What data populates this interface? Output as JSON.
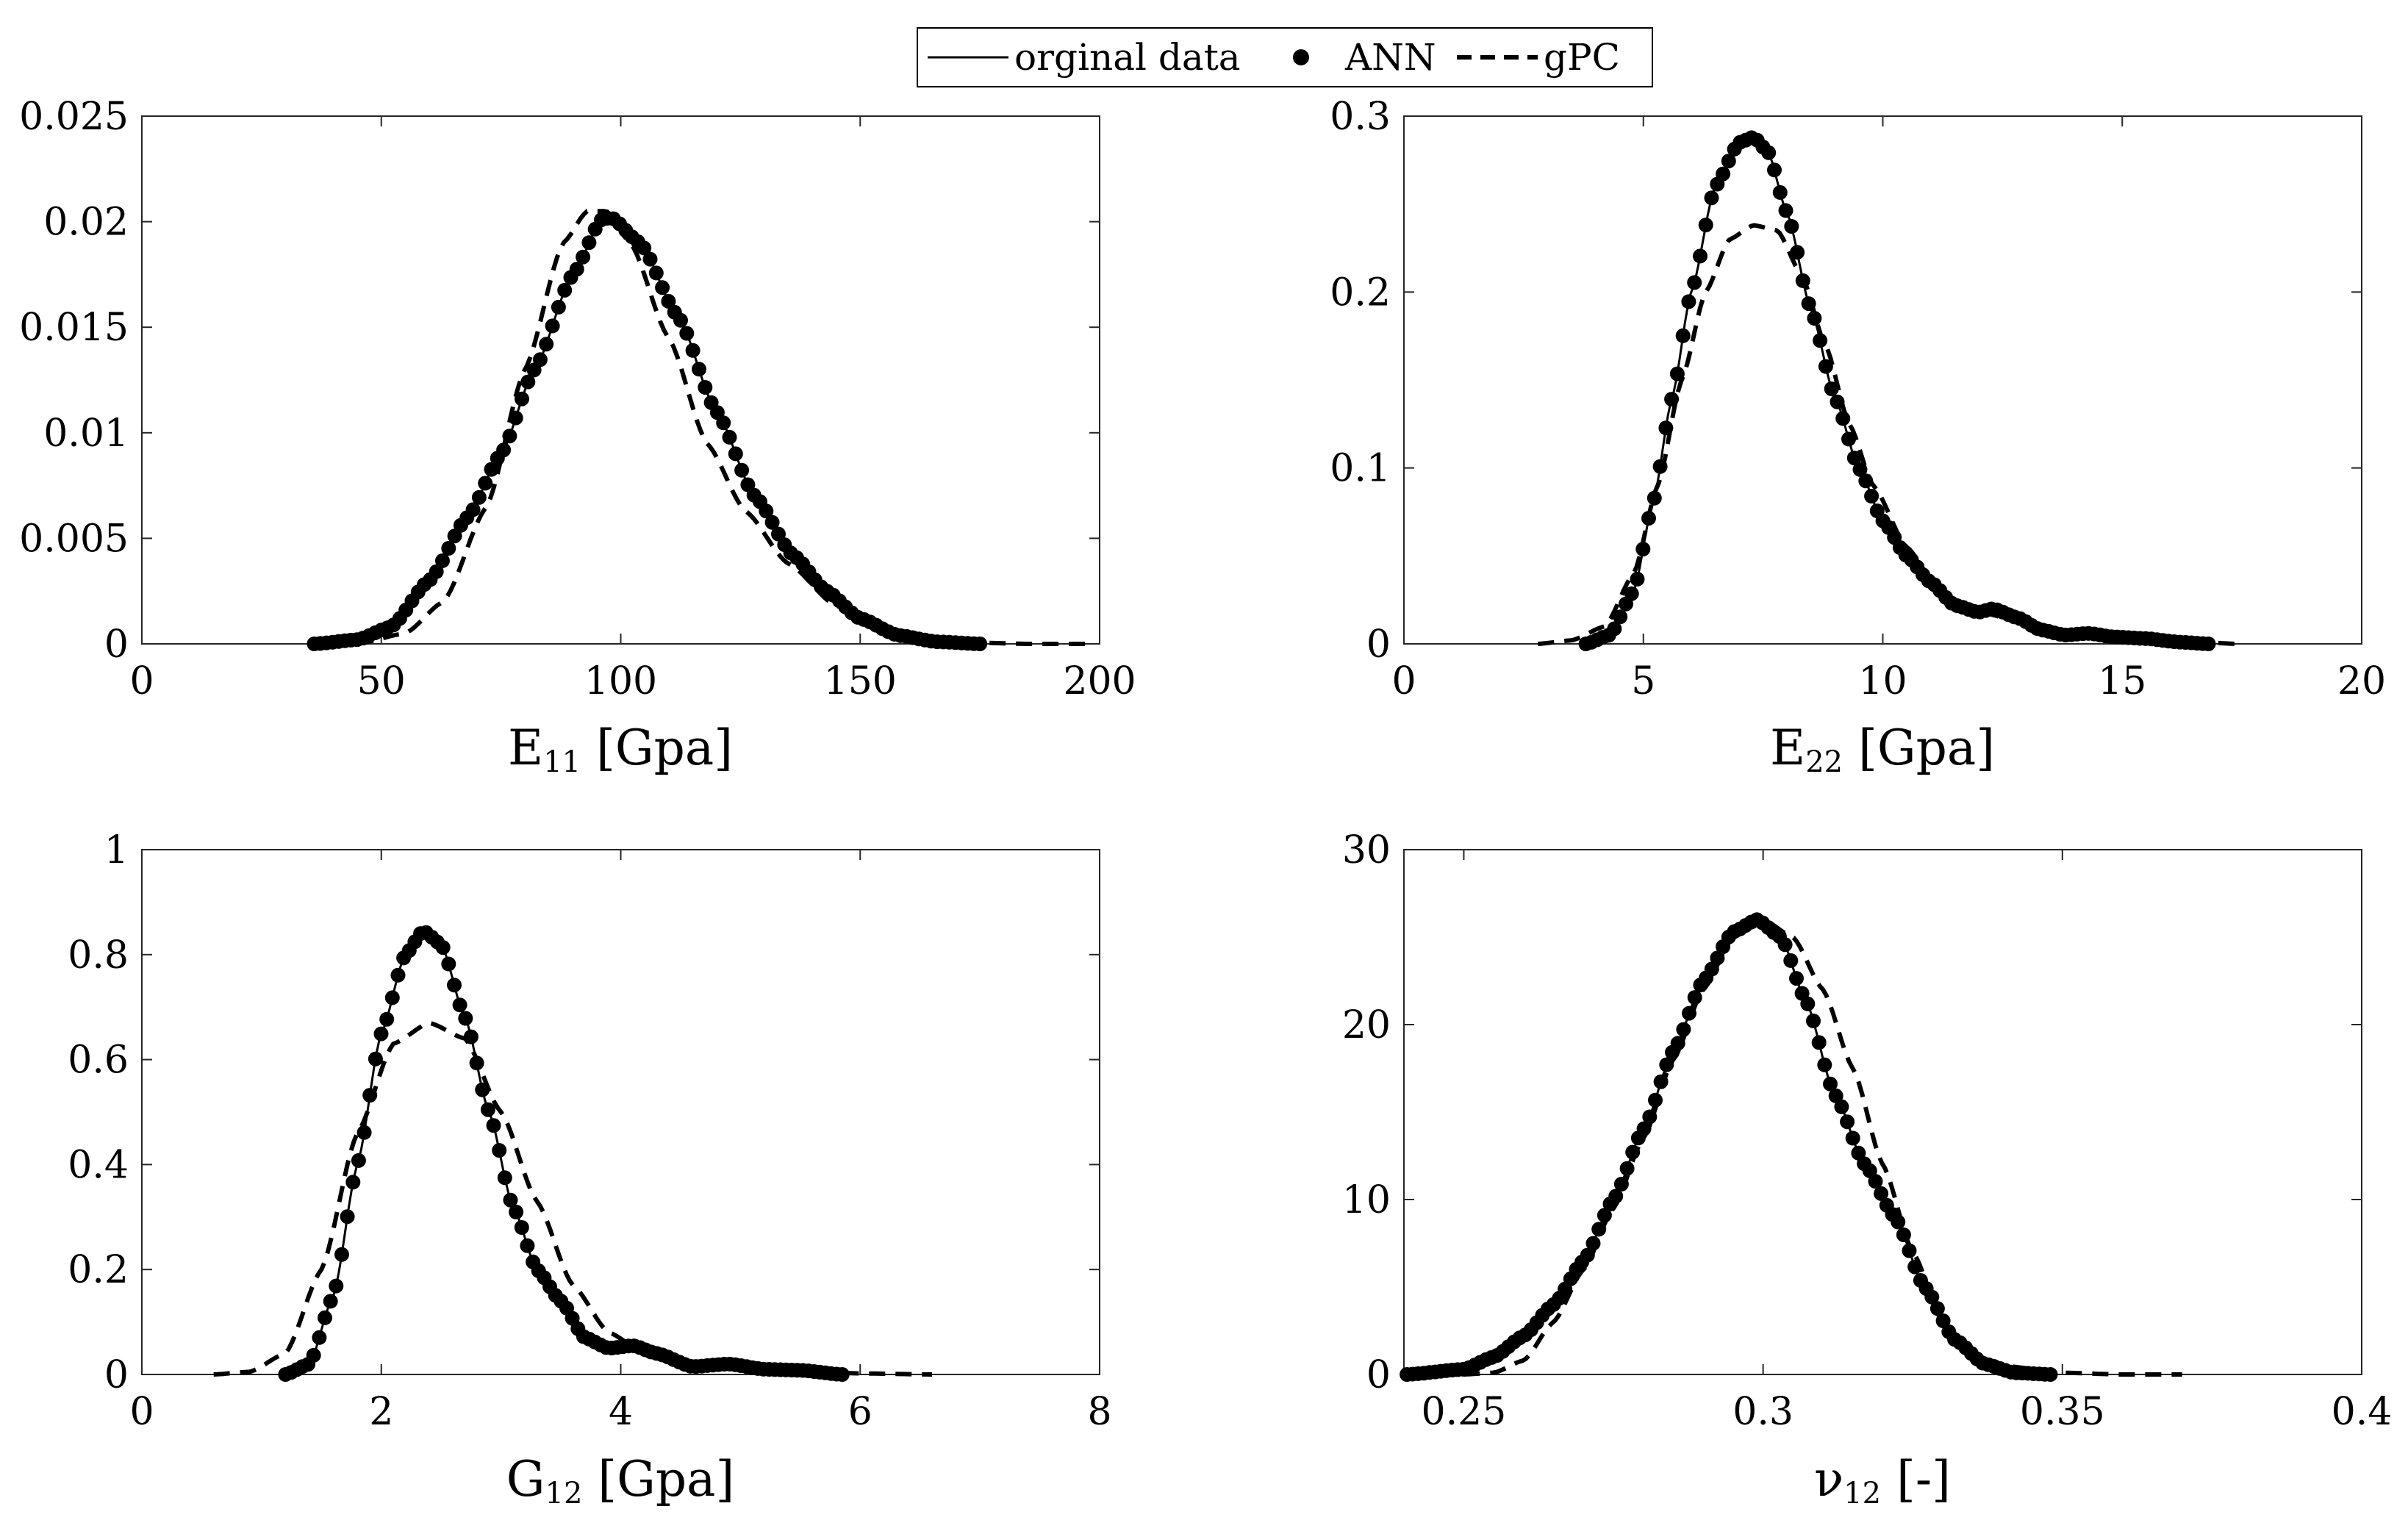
{
  "legend": {
    "items": [
      {
        "label": "orginal data",
        "style": "solid"
      },
      {
        "label": "ANN",
        "style": "markers"
      },
      {
        "label": "gPC",
        "style": "dashed"
      }
    ]
  },
  "chart_data": [
    {
      "id": "e11",
      "type": "line",
      "xlabel_main": "E",
      "xlabel_sub": "11",
      "xlabel_rest": " [Gpa]",
      "xlim": [
        0,
        200
      ],
      "ylim": [
        0,
        0.025
      ],
      "xticks": [
        0,
        50,
        100,
        150,
        200
      ],
      "xtick_labels": [
        "0",
        "50",
        "100",
        "150",
        "200"
      ],
      "yticks": [
        0,
        0.005,
        0.01,
        0.015,
        0.02,
        0.025
      ],
      "ytick_labels": [
        "0",
        "0.005",
        "0.01",
        "0.015",
        "0.02",
        "0.025"
      ],
      "series": [
        {
          "name": "orginal data",
          "style": "solid",
          "x": [
            36,
            45,
            52,
            60,
            68,
            75,
            82,
            90,
            96,
            98,
            104,
            112,
            120,
            128,
            136,
            143,
            150,
            158,
            166,
            175
          ],
          "y": [
            0,
            0.0002,
            0.0008,
            0.003,
            0.006,
            0.009,
            0.013,
            0.0175,
            0.0201,
            0.0202,
            0.019,
            0.0155,
            0.011,
            0.007,
            0.0042,
            0.0025,
            0.0012,
            0.0004,
            0.0001,
            0
          ]
        },
        {
          "name": "ANN",
          "style": "markers",
          "x_from": "orginal data",
          "y_from": "orginal data",
          "x_range": [
            36,
            175
          ],
          "n": 110
        },
        {
          "name": "gPC",
          "style": "dashed",
          "x": [
            45,
            55,
            63,
            72,
            80,
            88,
            93,
            97,
            102,
            110,
            118,
            126,
            135,
            145,
            155,
            165,
            175,
            185,
            198
          ],
          "y": [
            0,
            0.0005,
            0.002,
            0.0065,
            0.013,
            0.019,
            0.0205,
            0.0205,
            0.019,
            0.0145,
            0.0095,
            0.0063,
            0.0038,
            0.0018,
            0.0007,
            0.0002,
            5e-05,
            0,
            0
          ]
        }
      ]
    },
    {
      "id": "e22",
      "type": "line",
      "xlabel_main": "E",
      "xlabel_sub": "22",
      "xlabel_rest": " [Gpa]",
      "xlim": [
        0,
        20
      ],
      "ylim": [
        0,
        0.3
      ],
      "xticks": [
        0,
        5,
        10,
        15,
        20
      ],
      "xtick_labels": [
        "0",
        "5",
        "10",
        "15",
        "20"
      ],
      "yticks": [
        0,
        0.1,
        0.2,
        0.3
      ],
      "ytick_labels": [
        "0",
        "0.1",
        "0.2",
        "0.3"
      ],
      "series": [
        {
          "name": "orginal data",
          "style": "solid",
          "x": [
            3.8,
            4.3,
            4.8,
            5.2,
            5.6,
            6.0,
            6.5,
            7.0,
            7.3,
            7.6,
            8.0,
            8.5,
            9.0,
            9.5,
            10.0,
            10.5,
            11.0,
            11.5,
            12.0,
            12.3,
            12.8,
            13.3,
            13.8,
            14.3,
            14.8,
            15.5,
            16.2,
            16.8
          ],
          "y": [
            0,
            0.005,
            0.03,
            0.08,
            0.14,
            0.2,
            0.26,
            0.285,
            0.288,
            0.28,
            0.245,
            0.19,
            0.14,
            0.1,
            0.07,
            0.05,
            0.035,
            0.022,
            0.018,
            0.02,
            0.015,
            0.008,
            0.005,
            0.006,
            0.004,
            0.003,
            0.001,
            0
          ]
        },
        {
          "name": "ANN",
          "style": "markers",
          "x_from": "orginal data",
          "y_from": "orginal data",
          "x_range": [
            3.8,
            16.8
          ],
          "n": 110
        },
        {
          "name": "gPC",
          "style": "dashed",
          "x": [
            2.8,
            3.5,
            4.2,
            4.8,
            5.3,
            5.8,
            6.3,
            6.8,
            7.3,
            7.8,
            8.3,
            8.8,
            9.3,
            9.8,
            10.5,
            11.0,
            11.5,
            12.0,
            13.0,
            14.0,
            15.0,
            16.0,
            17.4
          ],
          "y": [
            0,
            0.002,
            0.01,
            0.04,
            0.09,
            0.15,
            0.2,
            0.23,
            0.238,
            0.235,
            0.21,
            0.17,
            0.125,
            0.09,
            0.055,
            0.038,
            0.025,
            0.018,
            0.012,
            0.007,
            0.004,
            0.002,
            0
          ]
        }
      ]
    },
    {
      "id": "g12",
      "type": "line",
      "xlabel_main": "G",
      "xlabel_sub": "12",
      "xlabel_rest": " [Gpa]",
      "xlim": [
        0,
        8
      ],
      "ylim": [
        0,
        1
      ],
      "xticks": [
        0,
        2,
        4,
        6,
        8
      ],
      "xtick_labels": [
        "0",
        "2",
        "4",
        "6",
        "8"
      ],
      "yticks": [
        0,
        0.2,
        0.4,
        0.6,
        0.8,
        1
      ],
      "ytick_labels": [
        "0",
        "0.2",
        "0.4",
        "0.6",
        "0.8",
        "1"
      ],
      "series": [
        {
          "name": "orginal data",
          "style": "solid",
          "x": [
            1.2,
            1.4,
            1.6,
            1.8,
            2.0,
            2.2,
            2.35,
            2.5,
            2.7,
            2.9,
            3.1,
            3.3,
            3.5,
            3.7,
            3.9,
            4.1,
            4.3,
            4.6,
            4.9,
            5.2,
            5.5,
            5.85
          ],
          "y": [
            0,
            0.02,
            0.15,
            0.4,
            0.65,
            0.8,
            0.845,
            0.82,
            0.68,
            0.5,
            0.32,
            0.2,
            0.14,
            0.07,
            0.05,
            0.055,
            0.04,
            0.015,
            0.02,
            0.01,
            0.008,
            0
          ]
        },
        {
          "name": "ANN",
          "style": "markers",
          "x_from": "orginal data",
          "y_from": "orginal data",
          "x_range": [
            1.2,
            5.85
          ],
          "n": 100
        },
        {
          "name": "gPC",
          "style": "dashed",
          "x": [
            0.6,
            0.9,
            1.2,
            1.5,
            1.8,
            2.1,
            2.4,
            2.7,
            3.0,
            3.3,
            3.6,
            3.9,
            4.2,
            4.6,
            5.0,
            5.5,
            6.0,
            6.6
          ],
          "y": [
            0,
            0.005,
            0.04,
            0.2,
            0.46,
            0.63,
            0.67,
            0.64,
            0.5,
            0.33,
            0.17,
            0.08,
            0.04,
            0.02,
            0.01,
            0.005,
            0.002,
            0
          ]
        }
      ]
    },
    {
      "id": "nu12",
      "type": "line",
      "xlabel_main": "ν",
      "xlabel_sub": "12",
      "xlabel_rest": " [-]",
      "xlim": [
        0.24,
        0.4
      ],
      "ylim": [
        0,
        30
      ],
      "xticks": [
        0.25,
        0.3,
        0.35,
        0.4
      ],
      "xtick_labels": [
        "0.25",
        "0.3",
        "0.35",
        "0.4"
      ],
      "yticks": [
        0,
        10,
        20,
        30
      ],
      "ytick_labels": [
        "0",
        "10",
        "20",
        "30"
      ],
      "series": [
        {
          "name": "orginal data",
          "style": "solid",
          "x": [
            0.2405,
            0.25,
            0.255,
            0.26,
            0.265,
            0.27,
            0.275,
            0.28,
            0.285,
            0.29,
            0.295,
            0.299,
            0.303,
            0.307,
            0.312,
            0.317,
            0.322,
            0.327,
            0.332,
            0.337,
            0.342,
            0.348
          ],
          "y": [
            0,
            0.3,
            1,
            2.2,
            4,
            6.5,
            10,
            14,
            18.5,
            22.5,
            25.3,
            26,
            25,
            21.5,
            16,
            12,
            9,
            5,
            2,
            0.6,
            0.1,
            0
          ]
        },
        {
          "name": "ANN",
          "style": "markers",
          "x_from": "orginal data",
          "y_from": "orginal data",
          "x_range": [
            0.2405,
            0.348
          ],
          "n": 115
        },
        {
          "name": "gPC",
          "style": "dashed",
          "x": [
            0.25,
            0.255,
            0.26,
            0.265,
            0.27,
            0.275,
            0.28,
            0.285,
            0.29,
            0.295,
            0.3,
            0.305,
            0.31,
            0.315,
            0.32,
            0.325,
            0.33,
            0.335,
            0.34,
            0.35,
            0.36,
            0.37
          ],
          "y": [
            0,
            0.1,
            0.8,
            3,
            6,
            9.5,
            13.5,
            18,
            22,
            25,
            26,
            25,
            22,
            17.5,
            12,
            7,
            3,
            1,
            0.5,
            0.1,
            0,
            0
          ]
        }
      ]
    }
  ]
}
